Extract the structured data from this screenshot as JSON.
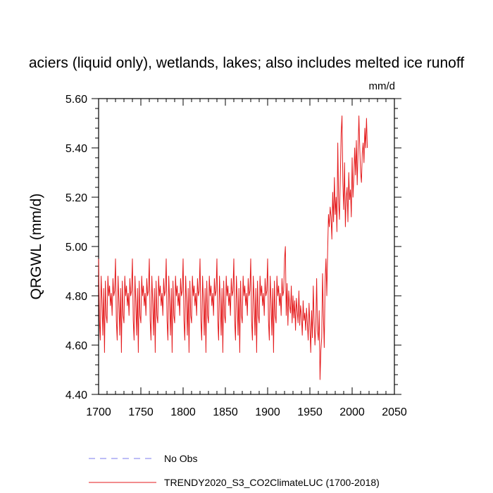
{
  "chart_data": {
    "type": "line",
    "title": "aciers (liquid only), wetlands, lakes; also includes melted ice runoff",
    "units_label": "mm/d",
    "ylabel": "QRGWL  (mm/d)",
    "xlabel": "",
    "xlim": [
      1700,
      2050
    ],
    "ylim": [
      4.4,
      5.6
    ],
    "xticks": [
      1700,
      1750,
      1800,
      1850,
      1900,
      1950,
      2000,
      2050
    ],
    "yticks": [
      "4.40",
      "4.60",
      "4.80",
      "5.00",
      "5.20",
      "5.40",
      "5.60"
    ],
    "grid": false,
    "legend_position": "bottom",
    "legend": [
      {
        "label": "No Obs",
        "style": "dashed",
        "color": "#7b7bef"
      },
      {
        "label": "TRENDY2020_S3_CO2ClimateLUC (1700-2018)",
        "style": "solid",
        "color": "#e41a1c"
      }
    ],
    "series": [
      {
        "name": "TRENDY2020_S3_CO2ClimateLUC (1700-2018)",
        "color": "#e41a1c",
        "x_start": 1700,
        "x_end": 2018,
        "cycle_pattern": [
          4.95,
          4.7,
          4.62,
          4.88,
          4.78,
          4.64,
          4.83,
          4.57,
          4.86,
          4.72,
          4.69,
          4.88,
          4.8,
          4.84,
          4.76,
          4.81,
          4.72,
          4.87,
          4.8,
          4.82
        ],
        "cycle_start": 1700,
        "cycle_end": 1920,
        "values_after": {
          "x": [
            1921,
            1922,
            1923,
            1924,
            1925,
            1926,
            1927,
            1928,
            1929,
            1930,
            1931,
            1932,
            1933,
            1934,
            1935,
            1936,
            1937,
            1938,
            1939,
            1940,
            1941,
            1942,
            1943,
            1944,
            1945,
            1946,
            1947,
            1948,
            1949,
            1950,
            1951,
            1952,
            1953,
            1954,
            1955,
            1956,
            1957,
            1958,
            1959,
            1960,
            1961,
            1962,
            1963,
            1964,
            1965,
            1966,
            1967,
            1968,
            1969,
            1970,
            1971,
            1972,
            1973,
            1974,
            1975,
            1976,
            1977,
            1978,
            1979,
            1980,
            1981,
            1982,
            1983,
            1984,
            1985,
            1986,
            1987,
            1988,
            1989,
            1990,
            1991,
            1992,
            1993,
            1994,
            1995,
            1996,
            1997,
            1998,
            1999,
            2000,
            2001,
            2002,
            2003,
            2004,
            2005,
            2006,
            2007,
            2008,
            2009,
            2010,
            2011,
            2012,
            2013,
            2014,
            2015,
            2016,
            2017,
            2018
          ],
          "y": [
            5.0,
            4.72,
            4.85,
            4.68,
            4.82,
            4.76,
            4.73,
            4.84,
            4.69,
            4.8,
            4.71,
            4.78,
            4.66,
            4.79,
            4.74,
            4.69,
            4.82,
            4.68,
            4.76,
            4.72,
            4.64,
            4.78,
            4.7,
            4.73,
            4.66,
            4.75,
            4.69,
            4.62,
            4.77,
            4.68,
            4.57,
            4.74,
            4.63,
            4.84,
            4.7,
            4.6,
            4.68,
            4.87,
            4.66,
            4.62,
            4.74,
            4.46,
            4.58,
            4.63,
            4.89,
            4.72,
            4.59,
            4.86,
            4.95,
            4.8,
            4.98,
            5.13,
            5.08,
            5.16,
            5.12,
            5.03,
            5.22,
            5.1,
            5.28,
            5.13,
            5.2,
            5.06,
            5.42,
            5.18,
            5.11,
            5.28,
            5.46,
            5.53,
            5.26,
            5.15,
            5.34,
            5.08,
            5.2,
            5.24,
            5.1,
            5.3,
            5.19,
            5.23,
            5.12,
            5.36,
            5.2,
            5.28,
            5.4,
            5.29,
            5.43,
            5.25,
            5.39,
            5.53,
            5.4,
            5.3,
            5.26,
            5.38,
            5.42,
            5.34,
            5.48,
            5.4,
            5.52,
            5.4
          ]
        }
      }
    ]
  }
}
